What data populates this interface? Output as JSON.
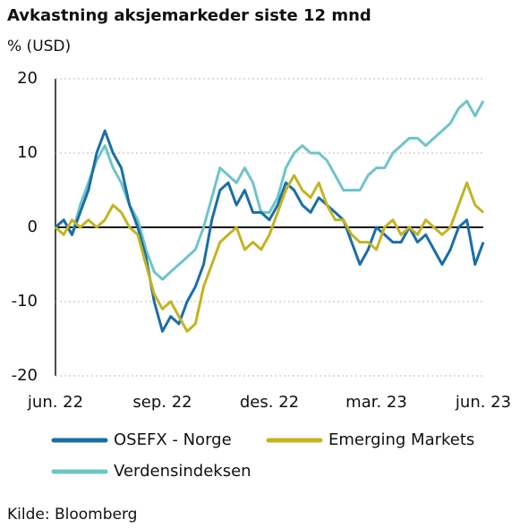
{
  "chart_data": {
    "type": "line",
    "title": "Avkastning aksjemarkeder siste 12 mnd",
    "y_label": "% (USD)",
    "source": "Kilde: Bloomberg",
    "categories": [
      "jun. 22",
      null,
      null,
      null,
      null,
      null,
      null,
      null,
      null,
      null,
      null,
      null,
      null,
      "sep. 22",
      null,
      null,
      null,
      null,
      null,
      null,
      null,
      null,
      null,
      null,
      null,
      null,
      "des. 22",
      null,
      null,
      null,
      null,
      null,
      null,
      null,
      null,
      null,
      null,
      null,
      null,
      "mar. 23",
      null,
      null,
      null,
      null,
      null,
      null,
      null,
      null,
      null,
      null,
      null,
      null,
      "jun. 23"
    ],
    "series": [
      {
        "name": "OSEFX - Norge",
        "color": "#1a6ea6",
        "values": [
          0,
          1,
          -1,
          2,
          5,
          10,
          13,
          10,
          8,
          3,
          0,
          -4,
          -10,
          -14,
          -12,
          -13,
          -10,
          -8,
          -5,
          1,
          5,
          6,
          3,
          5,
          2,
          2,
          1,
          3,
          6,
          5,
          3,
          2,
          4,
          3,
          2,
          1,
          -2,
          -5,
          -3,
          0,
          -1,
          -2,
          -2,
          0,
          -2,
          -1,
          -3,
          -5,
          -3,
          0,
          1,
          -5,
          -2
        ]
      },
      {
        "name": "Emerging Markets",
        "color": "#c4b322",
        "values": [
          0,
          -1,
          1,
          0,
          1,
          0,
          1,
          3,
          2,
          0,
          -1,
          -5,
          -9,
          -11,
          -10,
          -12,
          -14,
          -13,
          -8,
          -5,
          -2,
          -1,
          0,
          -3,
          -2,
          -3,
          -1,
          2,
          5,
          7,
          5,
          4,
          6,
          3,
          1,
          1,
          -1,
          -2,
          -2,
          -3,
          0,
          1,
          -1,
          0,
          -1,
          1,
          0,
          -1,
          0,
          3,
          6,
          3,
          2
        ]
      },
      {
        "name": "Verdensindeksen",
        "color": "#6cc5c9",
        "values": [
          0,
          1,
          -1,
          3,
          6,
          9,
          11,
          8,
          6,
          3,
          1,
          -3,
          -6,
          -7,
          -6,
          -5,
          -4,
          -3,
          0,
          4,
          8,
          7,
          6,
          8,
          6,
          2,
          2,
          4,
          8,
          10,
          11,
          10,
          10,
          9,
          7,
          5,
          5,
          5,
          7,
          8,
          8,
          10,
          11,
          12,
          12,
          11,
          12,
          13,
          14,
          16,
          17,
          15,
          17
        ]
      }
    ],
    "ylim": [
      -20,
      20
    ],
    "yticks": [
      -20,
      -10,
      0,
      10,
      20
    ],
    "grid": true
  }
}
